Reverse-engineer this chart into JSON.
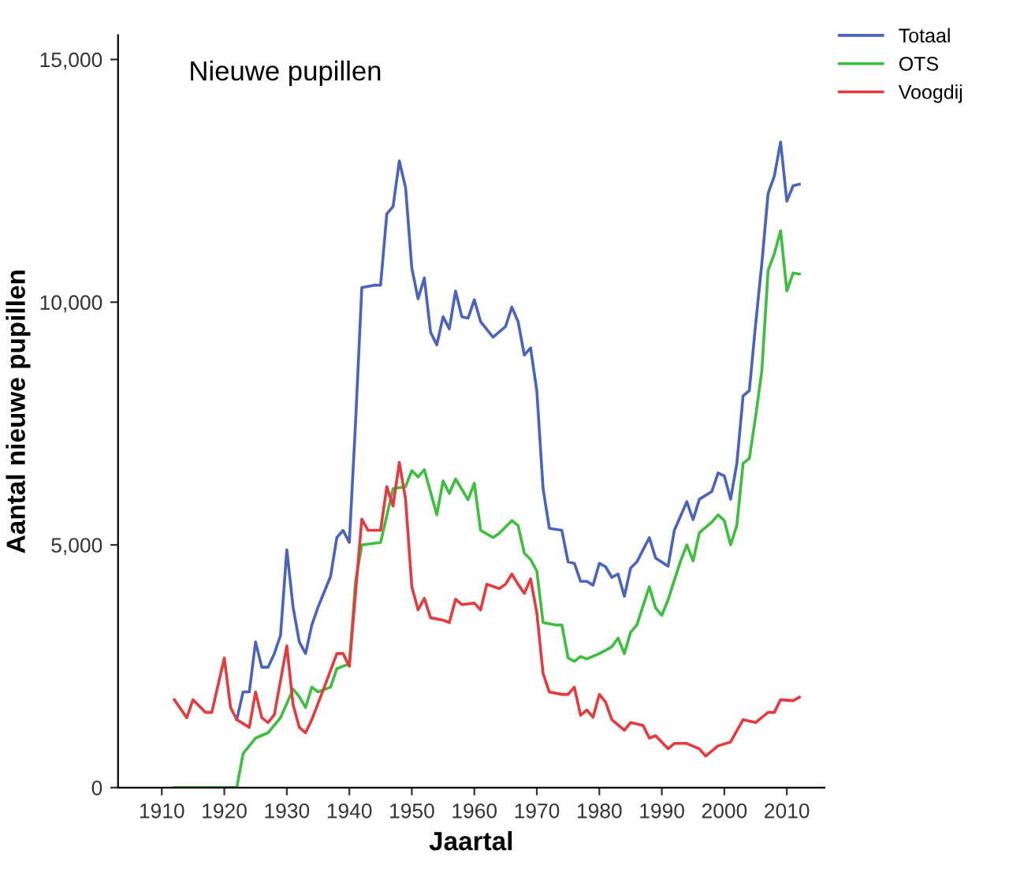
{
  "chart_data": {
    "type": "line",
    "title": "Nieuwe pupillen",
    "xlabel": "Jaartal",
    "ylabel": "Aantal nieuwe pupillen",
    "xlim": [
      1903,
      2016
    ],
    "xticks": [
      1910,
      1920,
      1930,
      1940,
      1950,
      1960,
      1970,
      1980,
      1990,
      2000,
      2010
    ],
    "ylim": [
      0,
      15500
    ],
    "yticks": [
      {
        "value": 0,
        "label": "0"
      },
      {
        "value": 5000,
        "label": "5,000"
      },
      {
        "value": 10000,
        "label": "10,000"
      },
      {
        "value": 15000,
        "label": "15,000"
      }
    ],
    "grid": false,
    "legend": "top right",
    "marker": "none",
    "line_style": "solid",
    "series": [
      {
        "name": "Totaal",
        "color": "#4a63bf",
        "x": [
          1922,
          1923,
          1924,
          1925,
          1926,
          1927,
          1928,
          1929,
          1930,
          1931,
          1932,
          1933,
          1934,
          1935,
          1937,
          1938,
          1939,
          1940,
          1941,
          1942,
          1944,
          1945,
          1946,
          1947,
          1948,
          1949,
          1950,
          1951,
          1952,
          1953,
          1954,
          1955,
          1956,
          1957,
          1958,
          1959,
          1960,
          1961,
          1963,
          1965,
          1966,
          1967,
          1968,
          1969,
          1970,
          1971,
          1972,
          1974,
          1975,
          1976,
          1977,
          1978,
          1979,
          1980,
          1981,
          1982,
          1983,
          1984,
          1985,
          1986,
          1988,
          1989,
          1991,
          1992,
          1994,
          1995,
          1996,
          1998,
          1999,
          2000,
          2001,
          2002,
          2003,
          2004,
          2005,
          2006,
          2007,
          2008,
          2009,
          2010,
          2011,
          2012
        ],
        "values": [
          1400,
          1970,
          1970,
          3000,
          2480,
          2480,
          2760,
          3140,
          4900,
          3720,
          3000,
          2760,
          3350,
          3720,
          4350,
          5150,
          5300,
          5050,
          7530,
          10300,
          10350,
          10350,
          11820,
          11970,
          12910,
          12360,
          10700,
          10070,
          10500,
          9380,
          9120,
          9700,
          9450,
          10230,
          9700,
          9670,
          10050,
          9600,
          9280,
          9500,
          9900,
          9600,
          8910,
          9060,
          8170,
          6160,
          5340,
          5300,
          4650,
          4620,
          4250,
          4250,
          4170,
          4620,
          4550,
          4330,
          4400,
          3940,
          4520,
          4650,
          5150,
          4730,
          4560,
          5300,
          5890,
          5520,
          5940,
          6100,
          6480,
          6420,
          5940,
          6680,
          8070,
          8180,
          9540,
          10800,
          12240,
          12600,
          13300,
          12080,
          12400,
          12430
        ]
      },
      {
        "name": "OTS",
        "color": "#3cbf3c",
        "x": [
          1912,
          1922,
          1923,
          1925,
          1927,
          1929,
          1931,
          1932,
          1933,
          1934,
          1935,
          1937,
          1938,
          1939,
          1940,
          1941,
          1942,
          1945,
          1947,
          1949,
          1950,
          1951,
          1952,
          1954,
          1955,
          1956,
          1957,
          1959,
          1960,
          1961,
          1963,
          1964,
          1966,
          1967,
          1968,
          1969,
          1970,
          1971,
          1973,
          1974,
          1975,
          1976,
          1977,
          1978,
          1980,
          1982,
          1983,
          1984,
          1985,
          1986,
          1988,
          1989,
          1990,
          1991,
          1993,
          1994,
          1995,
          1996,
          1998,
          1999,
          2000,
          2001,
          2002,
          2003,
          2004,
          2005,
          2006,
          2007,
          2008,
          2009,
          2010,
          2011,
          2012
        ],
        "values": [
          0,
          0,
          700,
          1020,
          1130,
          1440,
          2030,
          1870,
          1650,
          2070,
          1970,
          2070,
          2450,
          2500,
          2550,
          4250,
          5000,
          5050,
          6160,
          6200,
          6530,
          6400,
          6550,
          5620,
          6320,
          6060,
          6360,
          5930,
          6270,
          5300,
          5150,
          5240,
          5500,
          5400,
          4830,
          4700,
          4460,
          3400,
          3350,
          3350,
          2670,
          2600,
          2700,
          2650,
          2760,
          2900,
          3080,
          2760,
          3200,
          3350,
          4140,
          3700,
          3550,
          3870,
          4670,
          5000,
          4670,
          5250,
          5470,
          5620,
          5500,
          5000,
          5400,
          6680,
          6780,
          7640,
          8590,
          10650,
          11000,
          11470,
          10230,
          10600,
          10580
        ]
      },
      {
        "name": "Voogdij",
        "color": "#e8393f",
        "x": [
          1912,
          1914,
          1915,
          1917,
          1918,
          1920,
          1921,
          1922,
          1924,
          1925,
          1926,
          1927,
          1928,
          1930,
          1931,
          1932,
          1933,
          1934,
          1936,
          1938,
          1939,
          1940,
          1942,
          1943,
          1945,
          1946,
          1947,
          1948,
          1949,
          1950,
          1951,
          1952,
          1953,
          1955,
          1956,
          1957,
          1958,
          1960,
          1961,
          1962,
          1964,
          1965,
          1966,
          1967,
          1968,
          1969,
          1970,
          1971,
          1972,
          1974,
          1975,
          1976,
          1977,
          1978,
          1979,
          1980,
          1981,
          1982,
          1984,
          1985,
          1987,
          1988,
          1989,
          1991,
          1992,
          1994,
          1996,
          1997,
          1999,
          2001,
          2003,
          2005,
          2007,
          2008,
          2009,
          2011,
          2012
        ],
        "values": [
          1810,
          1440,
          1810,
          1550,
          1550,
          2670,
          1650,
          1400,
          1240,
          1970,
          1440,
          1340,
          1500,
          2920,
          1710,
          1240,
          1130,
          1400,
          2070,
          2760,
          2760,
          2500,
          5530,
          5300,
          5300,
          6200,
          5800,
          6700,
          5940,
          4140,
          3660,
          3900,
          3500,
          3450,
          3400,
          3880,
          3770,
          3800,
          3660,
          4190,
          4100,
          4190,
          4400,
          4190,
          4000,
          4300,
          3600,
          2350,
          1970,
          1920,
          1920,
          2070,
          1490,
          1600,
          1450,
          1920,
          1760,
          1400,
          1180,
          1340,
          1280,
          1020,
          1070,
          800,
          910,
          910,
          800,
          650,
          860,
          940,
          1400,
          1340,
          1550,
          1550,
          1810,
          1790,
          1860
        ]
      }
    ]
  }
}
